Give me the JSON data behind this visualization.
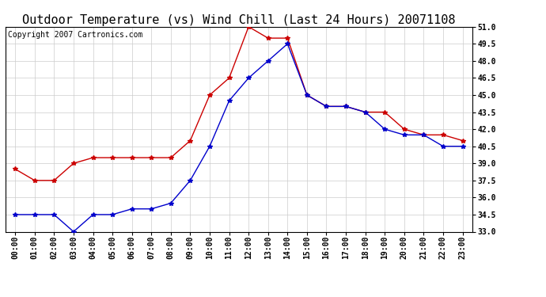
{
  "title": "Outdoor Temperature (vs) Wind Chill (Last 24 Hours) 20071108",
  "copyright": "Copyright 2007 Cartronics.com",
  "hours": [
    "00:00",
    "01:00",
    "02:00",
    "03:00",
    "04:00",
    "05:00",
    "06:00",
    "07:00",
    "08:00",
    "09:00",
    "10:00",
    "11:00",
    "12:00",
    "13:00",
    "14:00",
    "15:00",
    "16:00",
    "17:00",
    "18:00",
    "19:00",
    "20:00",
    "21:00",
    "22:00",
    "23:00"
  ],
  "outdoor_temp": [
    38.5,
    37.5,
    37.5,
    39.0,
    39.5,
    39.5,
    39.5,
    39.5,
    39.5,
    41.0,
    45.0,
    46.5,
    51.0,
    50.0,
    50.0,
    45.0,
    44.0,
    44.0,
    43.5,
    43.5,
    42.0,
    41.5,
    41.5,
    41.0
  ],
  "wind_chill": [
    34.5,
    34.5,
    34.5,
    33.0,
    34.5,
    34.5,
    35.0,
    35.0,
    35.5,
    37.5,
    40.5,
    44.5,
    46.5,
    48.0,
    49.5,
    45.0,
    44.0,
    44.0,
    43.5,
    42.0,
    41.5,
    41.5,
    40.5,
    40.5
  ],
  "temp_color": "#cc0000",
  "chill_color": "#0000cc",
  "ylim_min": 33.0,
  "ylim_max": 51.0,
  "ytick_step": 1.5,
  "background_color": "#ffffff",
  "grid_color": "#cccccc",
  "title_fontsize": 11,
  "copyright_fontsize": 7,
  "tick_fontsize": 7,
  "marker": "*",
  "marker_size": 4,
  "linewidth": 1.0
}
